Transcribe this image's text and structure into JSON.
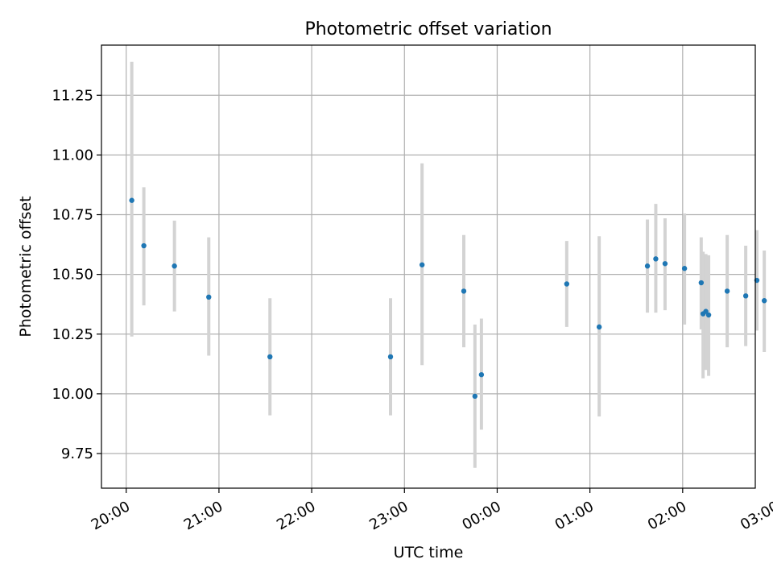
{
  "chart_data": {
    "type": "scatter",
    "title": "Photometric offset variation",
    "xlabel": "UTC time",
    "ylabel": "Photometric offset",
    "grid": true,
    "legend": "none",
    "x_unit": "hours after 20:00 UTC",
    "xlim": [
      -0.267,
      6.783
    ],
    "ylim": [
      9.605,
      11.46
    ],
    "xticks": [
      {
        "value": 0,
        "label": "20:00"
      },
      {
        "value": 1,
        "label": "21:00"
      },
      {
        "value": 2,
        "label": "22:00"
      },
      {
        "value": 3,
        "label": "23:00"
      },
      {
        "value": 4,
        "label": "00:00"
      },
      {
        "value": 5,
        "label": "01:00"
      },
      {
        "value": 6,
        "label": "02:00"
      },
      {
        "value": 7,
        "label": "03:00"
      }
    ],
    "yticks": [
      {
        "value": 9.75,
        "label": "9.75"
      },
      {
        "value": 10.0,
        "label": "10.00"
      },
      {
        "value": 10.25,
        "label": "10.25"
      },
      {
        "value": 10.5,
        "label": "10.50"
      },
      {
        "value": 10.75,
        "label": "10.75"
      },
      {
        "value": 11.0,
        "label": "11.00"
      },
      {
        "value": 11.25,
        "label": "11.25"
      }
    ],
    "point_color": "#1f77b4",
    "errorbar_color": "#d3d3d3",
    "points": [
      {
        "x": 0.06,
        "y": 10.81,
        "lo": 10.24,
        "hi": 11.39
      },
      {
        "x": 0.19,
        "y": 10.62,
        "lo": 10.37,
        "hi": 10.865
      },
      {
        "x": 0.52,
        "y": 10.535,
        "lo": 10.345,
        "hi": 10.725
      },
      {
        "x": 0.89,
        "y": 10.405,
        "lo": 10.16,
        "hi": 10.655
      },
      {
        "x": 1.55,
        "y": 10.155,
        "lo": 9.91,
        "hi": 10.4
      },
      {
        "x": 2.85,
        "y": 10.155,
        "lo": 9.91,
        "hi": 10.4
      },
      {
        "x": 3.19,
        "y": 10.54,
        "lo": 10.12,
        "hi": 10.965
      },
      {
        "x": 3.64,
        "y": 10.43,
        "lo": 10.195,
        "hi": 10.665
      },
      {
        "x": 3.76,
        "y": 9.99,
        "lo": 9.69,
        "hi": 10.29
      },
      {
        "x": 3.83,
        "y": 10.08,
        "lo": 9.85,
        "hi": 10.315
      },
      {
        "x": 4.75,
        "y": 10.46,
        "lo": 10.28,
        "hi": 10.64
      },
      {
        "x": 5.1,
        "y": 10.28,
        "lo": 9.905,
        "hi": 10.66
      },
      {
        "x": 5.62,
        "y": 10.535,
        "lo": 10.34,
        "hi": 10.73
      },
      {
        "x": 5.71,
        "y": 10.565,
        "lo": 10.34,
        "hi": 10.795
      },
      {
        "x": 5.81,
        "y": 10.545,
        "lo": 10.35,
        "hi": 10.735
      },
      {
        "x": 6.02,
        "y": 10.525,
        "lo": 10.29,
        "hi": 10.755
      },
      {
        "x": 6.2,
        "y": 10.465,
        "lo": 10.27,
        "hi": 10.655
      },
      {
        "x": 6.22,
        "y": 10.335,
        "lo": 10.065,
        "hi": 10.595
      },
      {
        "x": 6.25,
        "y": 10.345,
        "lo": 10.1,
        "hi": 10.585
      },
      {
        "x": 6.28,
        "y": 10.33,
        "lo": 10.075,
        "hi": 10.58
      },
      {
        "x": 6.48,
        "y": 10.43,
        "lo": 10.195,
        "hi": 10.665
      },
      {
        "x": 6.68,
        "y": 10.41,
        "lo": 10.2,
        "hi": 10.62
      },
      {
        "x": 6.8,
        "y": 10.475,
        "lo": 10.265,
        "hi": 10.685
      },
      {
        "x": 6.88,
        "y": 10.39,
        "lo": 10.175,
        "hi": 10.6
      }
    ]
  }
}
